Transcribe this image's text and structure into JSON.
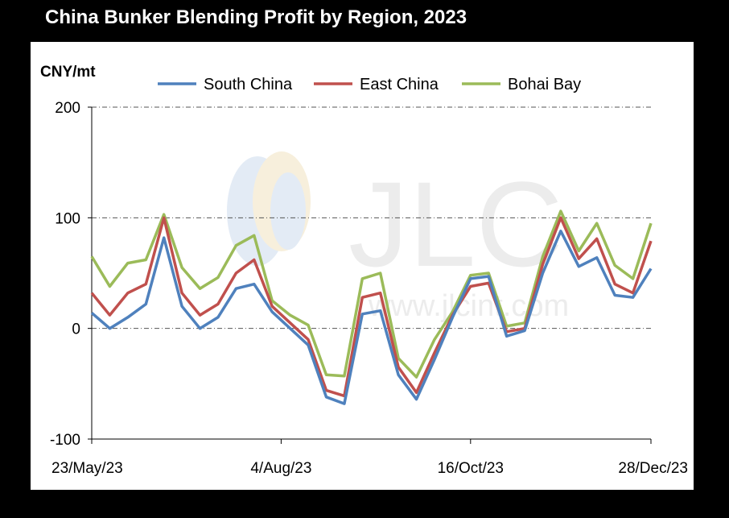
{
  "title": "China Bunker Blending Profit by Region, 2023",
  "watermark": {
    "logo": "JLC",
    "url": "www.jlcint.com"
  },
  "chart_data": {
    "type": "line",
    "ylabel": "CNY/mt",
    "xlabel": "",
    "ylim": [
      -100,
      200
    ],
    "yticks": [
      -100,
      0,
      100,
      200
    ],
    "xtick_labels": [
      "23/May/23",
      "4/Aug/23",
      "16/Oct/23",
      "28/Dec/23"
    ],
    "grid": "horizontal dash-dot",
    "legend": "top",
    "series": [
      {
        "name": "South China",
        "color": "#4F81BD",
        "values": [
          14,
          0,
          10,
          22,
          82,
          20,
          0,
          10,
          36,
          40,
          15,
          0,
          -15,
          -62,
          -68,
          13,
          16,
          -42,
          -64,
          -28,
          10,
          45,
          47,
          -7,
          -2,
          50,
          88,
          56,
          64,
          30,
          28,
          54
        ]
      },
      {
        "name": "East China",
        "color": "#C0504D",
        "values": [
          32,
          12,
          32,
          40,
          100,
          32,
          12,
          22,
          50,
          62,
          20,
          5,
          -10,
          -56,
          -61,
          28,
          32,
          -35,
          -58,
          -22,
          12,
          38,
          41,
          -3,
          0,
          58,
          100,
          63,
          81,
          40,
          32,
          79
        ]
      },
      {
        "name": "Bohai Bay",
        "color": "#9BBB59",
        "values": [
          65,
          38,
          59,
          62,
          103,
          55,
          36,
          46,
          75,
          84,
          25,
          12,
          3,
          -42,
          -43,
          45,
          50,
          -27,
          -44,
          -10,
          15,
          48,
          50,
          2,
          5,
          65,
          106,
          70,
          95,
          57,
          45,
          95
        ]
      }
    ]
  }
}
